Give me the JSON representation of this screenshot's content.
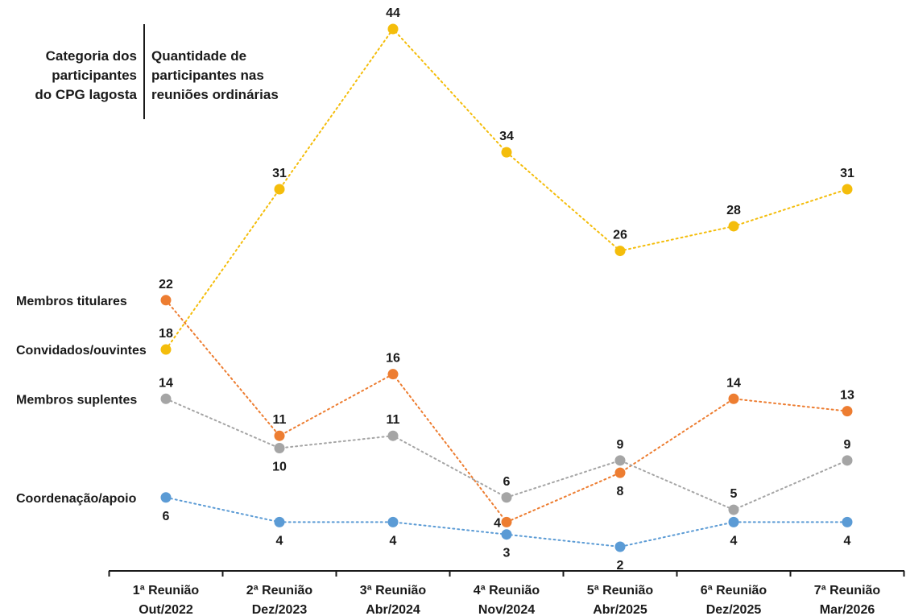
{
  "header": {
    "left_lines": [
      "Categoria dos",
      "participantes",
      "do CPG lagosta"
    ],
    "right_lines": [
      "Quantidade de",
      "participantes nas",
      "reuniões ordinárias"
    ]
  },
  "chart_data": {
    "type": "line",
    "categories": [
      [
        "1ª Reunião",
        "Out/2022"
      ],
      [
        "2ª Reunião",
        "Dez/2023"
      ],
      [
        "3ª Reunião",
        "Abr/2024"
      ],
      [
        "4ª Reunião",
        "Nov/2024"
      ],
      [
        "5ª Reunião",
        "Abr/2025"
      ],
      [
        "6ª Reunião",
        "Dez/2025"
      ],
      [
        "7ª Reunião",
        "Mar/2026"
      ]
    ],
    "ylim": [
      0,
      44
    ],
    "grid": false,
    "line_style": "dotted",
    "series": [
      {
        "name": "Convidados/ouvintes",
        "color": "#f4bd0b",
        "values": [
          18,
          31,
          44,
          34,
          26,
          28,
          31
        ],
        "label_pos": [
          "above",
          "above",
          "above",
          "above",
          "above",
          "above",
          "above"
        ]
      },
      {
        "name": "Membros titulares",
        "color": "#ed7d31",
        "values": [
          22,
          11,
          16,
          4,
          8,
          14,
          13
        ],
        "label_pos": [
          "above",
          "above",
          "above",
          "left",
          "below",
          "above",
          "above"
        ]
      },
      {
        "name": "Membros suplentes",
        "color": "#a5a5a5",
        "values": [
          14,
          10,
          11,
          6,
          9,
          5,
          9
        ],
        "label_pos": [
          "above",
          "below",
          "above",
          "above",
          "above",
          "above",
          "above"
        ]
      },
      {
        "name": "Coordenação/apoio",
        "color": "#5b9bd5",
        "values": [
          6,
          4,
          4,
          3,
          2,
          4,
          4
        ],
        "label_pos": [
          "below",
          "below",
          "below",
          "below",
          "below",
          "below",
          "below"
        ]
      }
    ]
  }
}
